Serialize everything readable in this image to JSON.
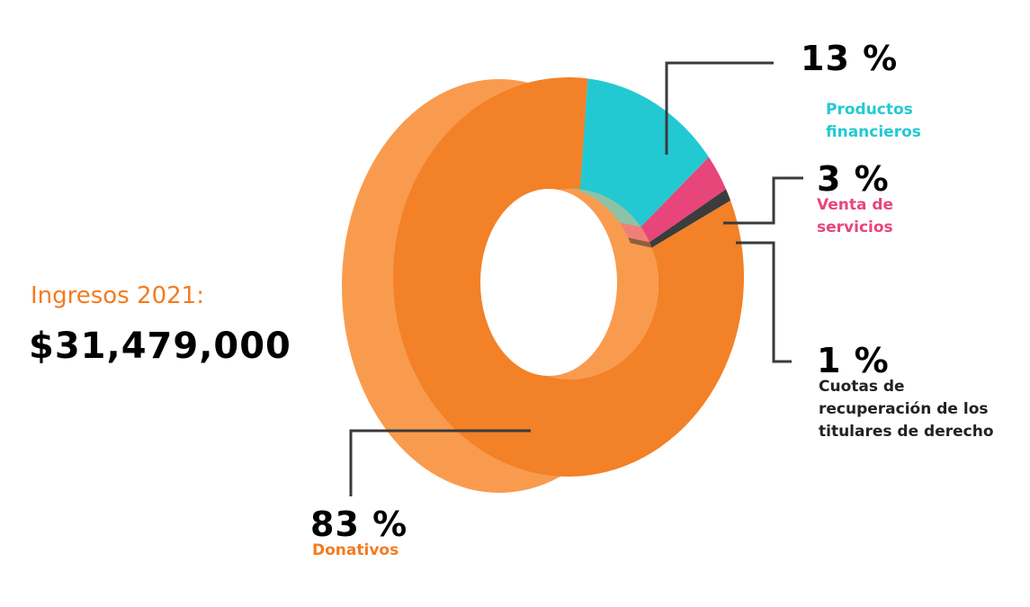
{
  "summary": {
    "label": "Ingresos 2021:",
    "total": "$31,479,000",
    "label_color": "#F47B20"
  },
  "chart_data": {
    "type": "pie",
    "style": "3d-donut",
    "categories": [
      "Donativos",
      "Productos financieros",
      "Venta de servicios",
      "Cuotas de recuperación de los titulares de derecho"
    ],
    "values": [
      83,
      13,
      3,
      1
    ],
    "value_labels": [
      "83 %",
      "13 %",
      "3 %",
      "1 %"
    ],
    "colors": [
      "#F28127",
      "#23C9D2",
      "#E8457B",
      "#3C3C3C"
    ],
    "side_colors": [
      "#F99B4E",
      "#8CC3A6",
      "#F07F7A",
      "#8E5F3C"
    ],
    "legend": "callout labels"
  },
  "labels": {
    "donativos": {
      "pct": "83 %",
      "name": "Donativos",
      "color": "#F47B20"
    },
    "productos": {
      "pct": "13 %",
      "name_line1": "Productos",
      "name_line2": "financieros",
      "color": "#23C9D2"
    },
    "venta": {
      "pct": "3 %",
      "name_line1": "Venta de",
      "name_line2": "servicios",
      "color": "#E8457B"
    },
    "cuotas": {
      "pct": "1 %",
      "name_line1": "Cuotas de",
      "name_line2": "recuperación de los",
      "name_line3": "titulares de derecho",
      "color": "#222222"
    }
  }
}
